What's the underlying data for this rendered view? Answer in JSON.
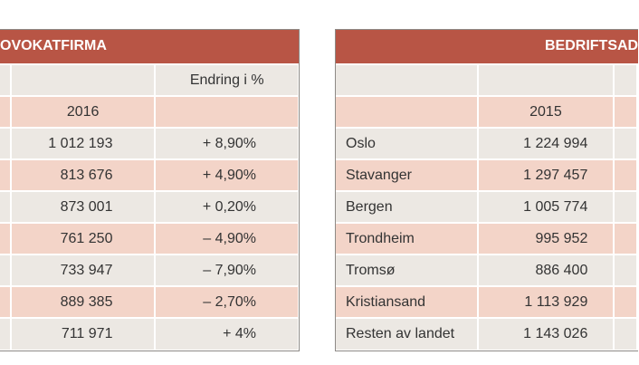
{
  "left_table": {
    "title": "OVOKATFIRMA",
    "change_header": "Endring i %",
    "year_header": "2016",
    "rows": [
      {
        "value": "1 012 193",
        "change": "+ 8,90%"
      },
      {
        "value": "813 676",
        "change": "+ 4,90%"
      },
      {
        "value": "873 001",
        "change": "+ 0,20%"
      },
      {
        "value": "761 250",
        "change": "– 4,90%"
      },
      {
        "value": "733 947",
        "change": "– 7,90%"
      },
      {
        "value": "889 385",
        "change": "– 2,70%"
      },
      {
        "value": "711 971",
        "change": "+ 4%"
      }
    ]
  },
  "right_table": {
    "title": "BEDRIFTSAD",
    "year_header": "2015",
    "rows": [
      {
        "city": "Oslo",
        "value": "1 224 994"
      },
      {
        "city": "Stavanger",
        "value": "1 297 457"
      },
      {
        "city": "Bergen",
        "value": "1 005 774"
      },
      {
        "city": "Trondheim",
        "value": "995 952"
      },
      {
        "city": "Tromsø",
        "value": "886 400"
      },
      {
        "city": "Kristiansand",
        "value": "1 113 929"
      },
      {
        "city": "Resten av landet",
        "value": "1 143 026"
      }
    ]
  },
  "colors": {
    "header_bg": "#b85545",
    "row_pink": "#f3d4c8",
    "row_beige": "#ece8e3"
  }
}
